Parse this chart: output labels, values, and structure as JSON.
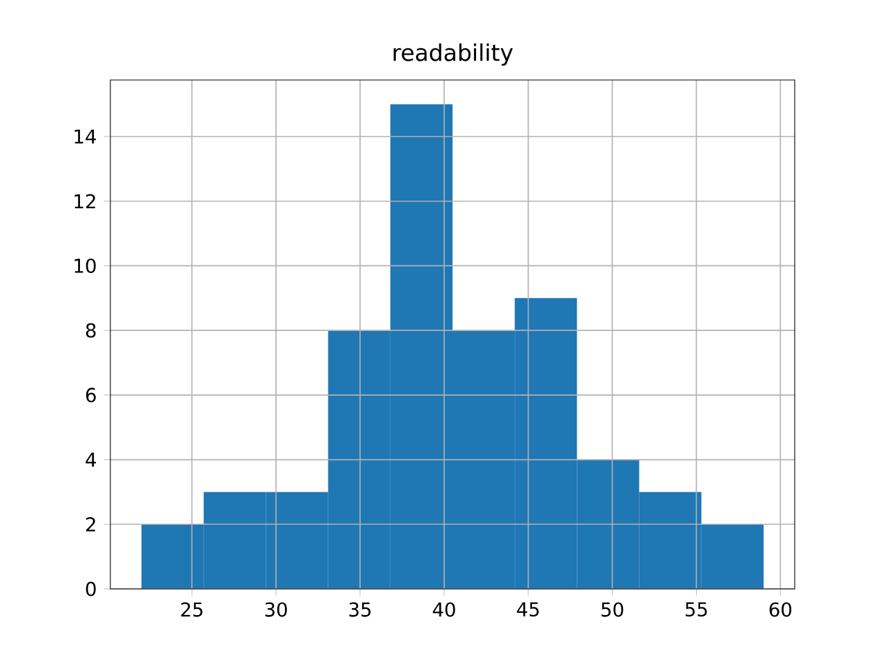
{
  "chart_data": {
    "type": "histogram",
    "title": "readability",
    "bins": [
      22.0,
      25.7,
      29.4,
      33.1,
      36.8,
      40.5,
      44.2,
      47.9,
      51.6,
      55.3,
      59.0
    ],
    "values": [
      2,
      3,
      3,
      8,
      15,
      8,
      9,
      4,
      3,
      2
    ],
    "color": "#1f77b4",
    "xlim": [
      20.15,
      60.85
    ],
    "ylim": [
      0,
      15.75
    ],
    "xticks": [
      25,
      30,
      35,
      40,
      45,
      50,
      55,
      60
    ],
    "yticks": [
      0,
      2,
      4,
      6,
      8,
      10,
      12,
      14
    ],
    "grid": true
  }
}
